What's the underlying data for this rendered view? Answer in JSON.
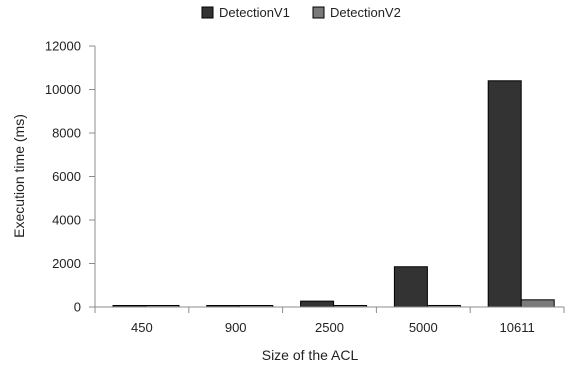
{
  "chart_data": {
    "type": "bar",
    "title": "",
    "xlabel": "Size of the ACL",
    "ylabel": "Execution time (ms)",
    "categories": [
      "450",
      "900",
      "2500",
      "5000",
      "10611"
    ],
    "series": [
      {
        "name": "DetectionV1",
        "values": [
          10,
          60,
          270,
          1850,
          10400
        ],
        "color": "#333333"
      },
      {
        "name": "DetectionV2",
        "values": [
          5,
          15,
          60,
          70,
          330
        ],
        "color": "#7a7a7a"
      }
    ],
    "ylim": [
      0,
      12000
    ],
    "yticks": [
      "0",
      "2000",
      "4000",
      "6000",
      "8000",
      "10000",
      "12000"
    ],
    "grid": false,
    "legend": "top-center",
    "colors": {
      "axis": "#8c8c8c",
      "bar_edge": "#000000"
    }
  }
}
